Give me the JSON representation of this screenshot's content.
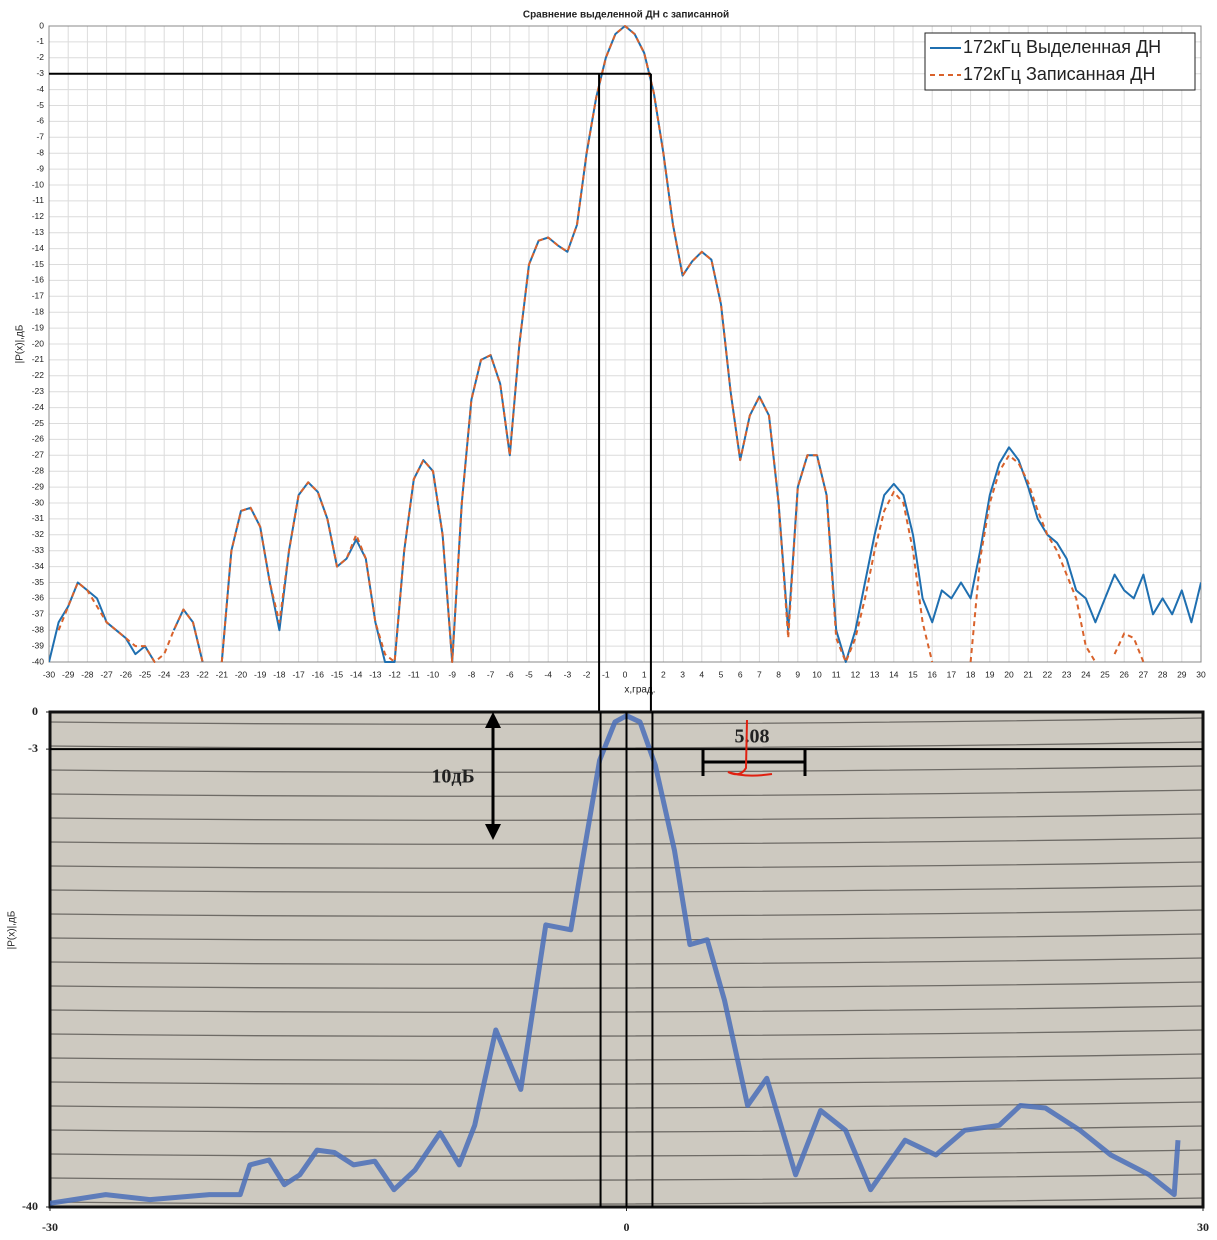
{
  "chart_data": [
    {
      "type": "line",
      "title": "Сравнение выделенной ДН с записанной",
      "xlabel": "x,град.",
      "ylabel": "|P(x)|,дБ",
      "x": [
        -30,
        -29.5,
        -29,
        -28.5,
        -28,
        -27.5,
        -27,
        -26.5,
        -26,
        -25.5,
        -25,
        -24.5,
        -24,
        -23.5,
        -23,
        -22.5,
        -22,
        -21.5,
        -21,
        -20.5,
        -20,
        -19.5,
        -19,
        -18.5,
        -18,
        -17.5,
        -17,
        -16.5,
        -16,
        -15.5,
        -15,
        -14.5,
        -14,
        -13.5,
        -13,
        -12.5,
        -12,
        -11.5,
        -11,
        -10.5,
        -10,
        -9.5,
        -9,
        -8.5,
        -8,
        -7.5,
        -7,
        -6.5,
        -6,
        -5.5,
        -5,
        -4.5,
        -4,
        -3.5,
        -3,
        -2.5,
        -2,
        -1.5,
        -1,
        -0.5,
        0,
        0.5,
        1,
        1.5,
        2,
        2.5,
        3,
        3.5,
        4,
        4.5,
        5,
        5.5,
        6,
        6.5,
        7,
        7.5,
        8,
        8.5,
        9,
        9.5,
        10,
        10.5,
        11,
        11.5,
        12,
        12.5,
        13,
        13.5,
        14,
        14.5,
        15,
        15.5,
        16,
        16.5,
        17,
        17.5,
        18,
        18.5,
        19,
        19.5,
        20,
        20.5,
        21,
        21.5,
        22,
        22.5,
        23,
        23.5,
        24,
        24.5,
        25,
        25.5,
        26,
        26.5,
        27,
        27.5,
        28,
        28.5,
        29,
        29.5,
        30
      ],
      "series": [
        {
          "name": "172кГц Выделенная ДН",
          "color": "#1f6fb0",
          "dash": false,
          "values": [
            -40,
            -37.5,
            -36.5,
            -35,
            -35.5,
            -36,
            -37.5,
            -38,
            -38.5,
            -39.5,
            -39,
            -40,
            null,
            -38,
            -36.7,
            -37.5,
            -40,
            null,
            -40,
            -33,
            -30.5,
            -30.3,
            -31.5,
            -35,
            -38,
            -33,
            -29.5,
            -28.7,
            -29.3,
            -31,
            -34,
            -33.5,
            -32.3,
            -33.5,
            -37.5,
            -40,
            -40,
            -33,
            -28.5,
            -27.3,
            -28,
            -32,
            -40,
            -30,
            -23.5,
            -21,
            -20.7,
            -22.5,
            -27,
            -20,
            -15,
            -13.5,
            -13.3,
            -13.8,
            -14.2,
            -12.5,
            -8,
            -4.5,
            -2,
            -0.5,
            0,
            -0.5,
            -1.7,
            -4.2,
            -8,
            -12.5,
            -15.7,
            -14.8,
            -14.2,
            -14.7,
            -17.5,
            -23,
            -27.3,
            -24.5,
            -23.3,
            -24.5,
            -30,
            -38,
            -29,
            -27,
            -27,
            -29.5,
            -38,
            -40,
            -38,
            -35,
            -32,
            -29.5,
            -28.8,
            -29.5,
            -32,
            -36,
            -37.5,
            -35.5,
            -36,
            -35,
            -36,
            -33,
            -29.5,
            -27.5,
            -26.5,
            -27.3,
            -29,
            -31,
            -32,
            -32.5,
            -33.5,
            -35.5,
            -36,
            -37.5,
            -36,
            -34.5,
            -35.5,
            -36,
            -34.5,
            -37,
            -36,
            -37,
            -35.5,
            -37.5,
            -35
          ]
        },
        {
          "name": "172кГц Записанная ДН",
          "color": "#d9622b",
          "dash": true,
          "values": [
            null,
            -38,
            -36.5,
            -35,
            -35.5,
            -36.5,
            -37.5,
            -38,
            -38.5,
            -39,
            -39,
            -40,
            -39.5,
            -38,
            -36.7,
            -37.5,
            -40,
            null,
            -40,
            -33,
            -30.5,
            -30.3,
            -31.5,
            -35,
            -37.5,
            -33,
            -29.5,
            -28.7,
            -29.3,
            -31,
            -34,
            -33.5,
            -32,
            -33.5,
            -37.5,
            -39.5,
            -40,
            -33,
            -28.5,
            -27.3,
            -28,
            -32,
            -40,
            -30,
            -23.5,
            -21,
            -20.7,
            -22.5,
            -27,
            -20,
            -15,
            -13.5,
            -13.3,
            -13.8,
            -14.2,
            -12.5,
            -8,
            -4.5,
            -2,
            -0.5,
            0,
            -0.5,
            -1.7,
            -4.2,
            -8,
            -12.5,
            -15.7,
            -14.8,
            -14.2,
            -14.7,
            -17.5,
            -23,
            -27.3,
            -24.5,
            -23.3,
            -24.5,
            -30,
            -38.5,
            -29,
            -27,
            -27,
            -29.5,
            -38.5,
            -40,
            -38.5,
            -36,
            -33,
            -30.5,
            -29.3,
            -30,
            -33,
            -37.5,
            -40,
            null,
            -40,
            null,
            -40,
            -33.5,
            -30,
            -28,
            -27,
            -27.5,
            -28.7,
            -30.5,
            -32,
            -33,
            -34.5,
            -36,
            -39,
            -40,
            null,
            -39.5,
            -38.2,
            -38.5,
            -40,
            null,
            null,
            null,
            null,
            null,
            null
          ]
        }
      ],
      "xlim": [
        -30,
        30
      ],
      "ylim": [
        -40,
        0
      ],
      "xticks": [
        -30,
        -29,
        -28,
        -27,
        -26,
        -25,
        -24,
        -23,
        -22,
        -21,
        -20,
        -19,
        -18,
        -17,
        -16,
        -15,
        -14,
        -13,
        -12,
        -11,
        -10,
        -9,
        -8,
        -7,
        -6,
        -5,
        -4,
        -3,
        -2,
        -1,
        0,
        1,
        2,
        3,
        4,
        5,
        6,
        7,
        8,
        9,
        10,
        11,
        12,
        13,
        14,
        15,
        16,
        17,
        18,
        19,
        20,
        21,
        22,
        23,
        24,
        25,
        26,
        27,
        28,
        29,
        30
      ],
      "yticks": [
        0,
        -1,
        -2,
        -3,
        -4,
        -5,
        -6,
        -7,
        -8,
        -9,
        -10,
        -11,
        -12,
        -13,
        -14,
        -15,
        -16,
        -17,
        -18,
        -19,
        -20,
        -21,
        -22,
        -23,
        -24,
        -25,
        -26,
        -27,
        -28,
        -29,
        -30,
        -31,
        -32,
        -33,
        -34,
        -35,
        -36,
        -37,
        -38,
        -39,
        -40
      ],
      "grid": true,
      "legend": "upper right",
      "reference_lines": {
        "y": [
          -3
        ],
        "x": [
          -1.35,
          1.35
        ]
      }
    },
    {
      "type": "line",
      "ylabel": "|P(x)|,дБ",
      "x": [
        -30,
        -27.1,
        -24.8,
        -21.7,
        -20.1,
        -19.6,
        -18.6,
        -17.8,
        -17,
        -16.1,
        -15.2,
        -14.2,
        -13.1,
        -12.1,
        -11,
        -9.7,
        -8.7,
        -7.9,
        -6.8,
        -5.5,
        -4.2,
        -2.9,
        -2.2,
        -1.4,
        -0.6,
        0,
        0.7,
        1.5,
        2.5,
        3.3,
        4.2,
        5.1,
        6.3,
        7.3,
        8.8,
        10.1,
        11.4,
        12.7,
        14.5,
        16.1,
        17.6,
        19.4,
        20.5,
        21.8,
        23.6,
        25.2,
        27.2,
        28.5,
        28.7
      ],
      "series": [
        {
          "color": "#4a6fb8",
          "values": [
            -39.7,
            -39,
            -39.4,
            -39,
            -39,
            -36.6,
            -36.2,
            -38.2,
            -37.4,
            -35.4,
            -35.6,
            -36.6,
            -36.3,
            -38.6,
            -37,
            -34,
            -36.6,
            -33.4,
            -25.7,
            -30.5,
            -17.2,
            -17.6,
            -11.2,
            -3.9,
            -0.8,
            -0.3,
            -0.8,
            -4.3,
            -11.2,
            -18.8,
            -18.4,
            -23.3,
            -31.8,
            -29.6,
            -37.4,
            -32.2,
            -33.8,
            -38.6,
            -34.6,
            -35.8,
            -33.8,
            -33.4,
            -31.8,
            -32,
            -33.8,
            -35.8,
            -37.4,
            -39,
            -34.6
          ]
        }
      ],
      "xlim": [
        -30,
        30
      ],
      "ylim": [
        -40,
        0
      ],
      "xticks": [
        -30,
        0,
        30
      ],
      "yticks": [
        0,
        -3,
        -40
      ],
      "annotations": [
        "10дБ",
        "5.08"
      ],
      "reference_lines": {
        "y": [
          -3
        ],
        "x": [
          -1.35,
          0,
          1.35
        ]
      }
    }
  ]
}
